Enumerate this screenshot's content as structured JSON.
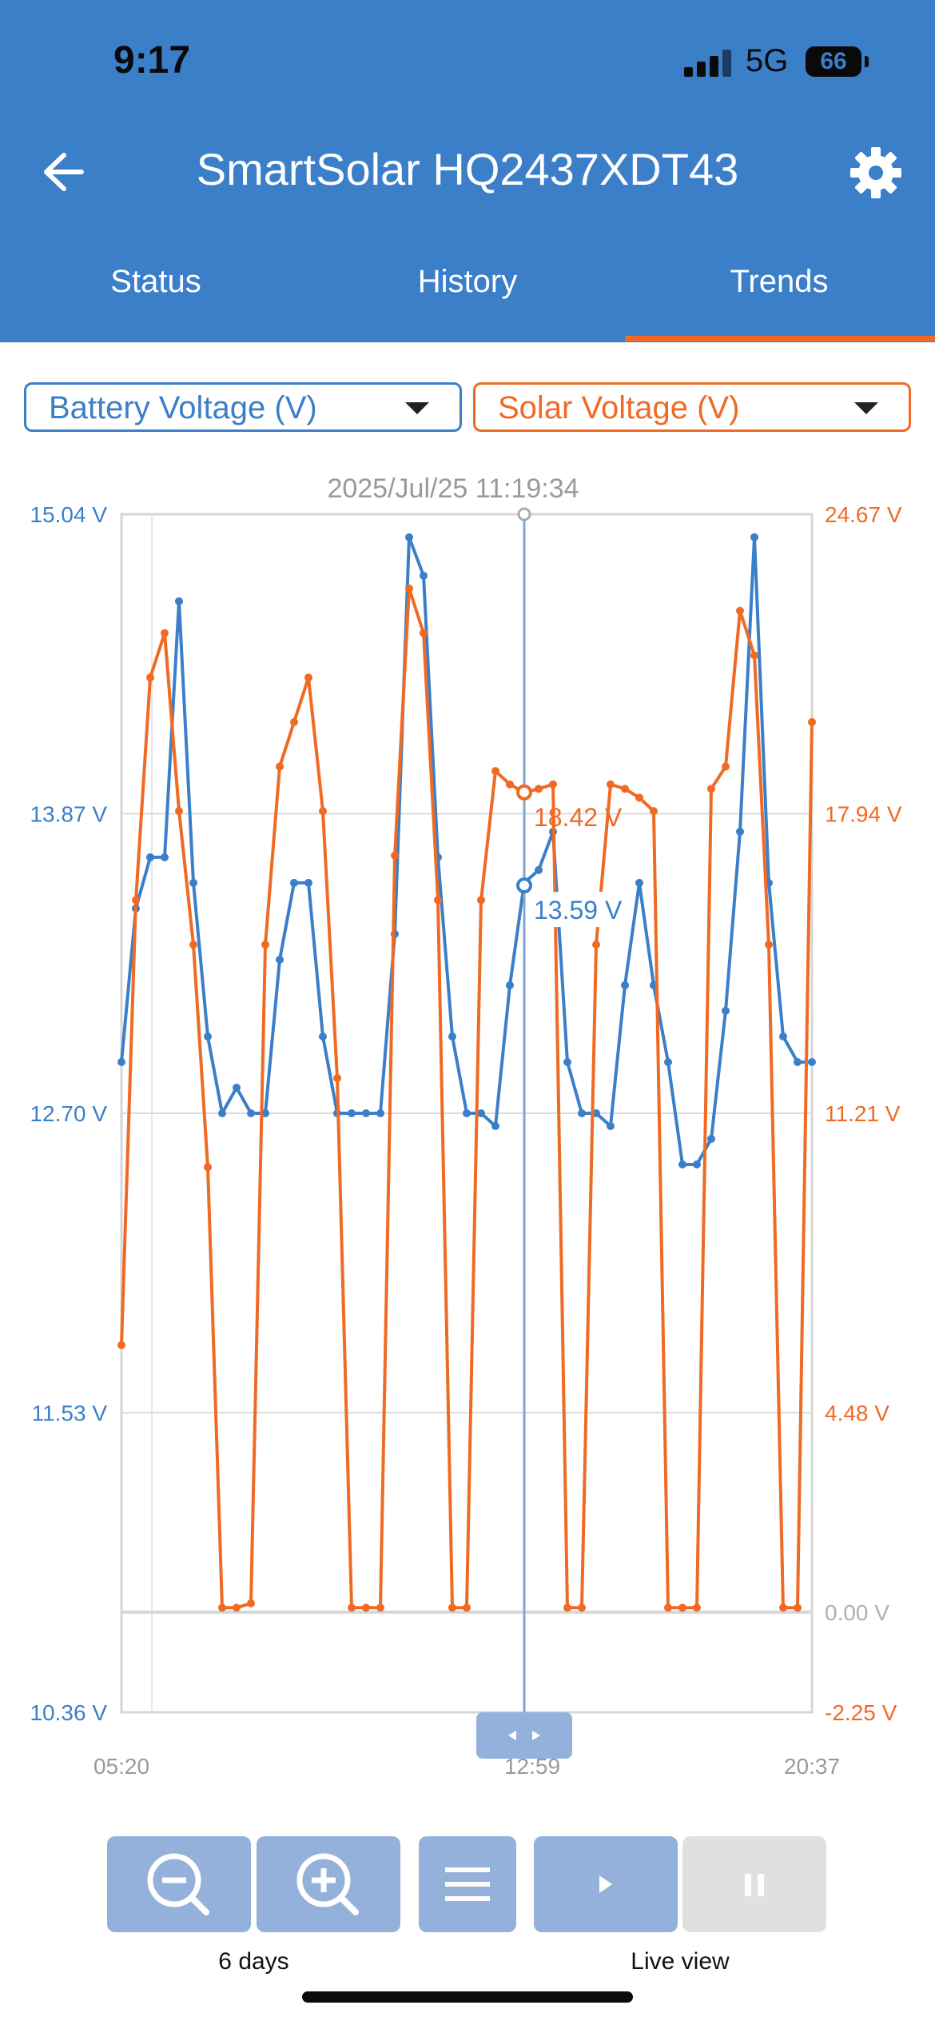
{
  "status_bar": {
    "time": "9:17",
    "network": "5G",
    "battery": "66"
  },
  "header": {
    "title": "SmartSolar HQ2437XDT43"
  },
  "tabs": [
    {
      "label": "Status"
    },
    {
      "label": "History"
    },
    {
      "label": "Trends",
      "active": true
    }
  ],
  "selectors": {
    "left": {
      "label": "Battery Voltage (V)",
      "color": "#3b7fc9"
    },
    "right": {
      "label": "Solar Voltage (V)",
      "color": "#f06a24"
    }
  },
  "chart_data": {
    "type": "line",
    "cursor_timestamp": "2025/Jul/25 11:19:34",
    "x_tick_labels": [
      "05:20",
      "12:59",
      "20:37"
    ],
    "left_axis": {
      "ticks": [
        "15.04 V",
        "13.87 V",
        "12.70 V",
        "11.53 V",
        "10.36 V"
      ],
      "ylim": [
        10.36,
        15.04
      ]
    },
    "right_axis": {
      "ticks": [
        "24.67 V",
        "17.94 V",
        "11.21 V",
        "4.48 V",
        "0.00 V",
        "-2.25 V"
      ],
      "ylim": [
        -2.25,
        24.67
      ]
    },
    "cursor_labels": {
      "solar": "18.42 V",
      "battery": "13.59 V"
    },
    "series": [
      {
        "name": "Battery Voltage (V)",
        "axis": "left",
        "color": "#3b7fc9",
        "x": [
          0,
          0.5,
          1,
          1.5,
          2,
          2.5,
          3,
          3.5,
          4,
          4.5,
          5,
          5.5,
          6,
          6.5,
          7,
          7.5,
          8,
          8.5,
          9,
          9.5,
          10,
          10.5,
          11,
          11.5,
          12,
          12.5,
          13,
          13.5,
          14,
          14.5,
          15,
          15.5,
          16,
          16.5,
          17,
          17.5,
          18,
          18.5,
          19,
          19.5,
          20,
          20.5,
          21,
          21.5,
          22,
          22.5,
          23,
          23.5,
          24
        ],
        "values": [
          12.9,
          13.5,
          13.7,
          13.7,
          14.7,
          13.6,
          13.0,
          12.7,
          12.8,
          12.7,
          12.7,
          13.3,
          13.6,
          13.6,
          13.0,
          12.7,
          12.7,
          12.7,
          12.7,
          13.4,
          14.95,
          14.8,
          13.7,
          13.0,
          12.7,
          12.7,
          12.65,
          13.2,
          13.6,
          13.65,
          13.8,
          12.9,
          12.7,
          12.7,
          12.65,
          13.2,
          13.6,
          13.2,
          12.9,
          12.5,
          12.5,
          12.6,
          13.1,
          13.8,
          14.95,
          13.6,
          13.0,
          12.9,
          12.9
        ]
      },
      {
        "name": "Solar Voltage (V)",
        "axis": "right",
        "color": "#f06a24",
        "x": [
          0,
          0.5,
          1,
          1.5,
          2,
          2.5,
          3,
          3.5,
          4,
          4.5,
          5,
          5.5,
          6,
          6.5,
          7,
          7.5,
          8,
          8.5,
          9,
          9.5,
          10,
          10.5,
          11,
          11.5,
          12,
          12.5,
          13,
          13.5,
          14,
          14.5,
          15,
          15.5,
          16,
          16.5,
          17,
          17.5,
          18,
          18.5,
          19,
          19.5,
          20,
          20.5,
          21,
          21.5,
          22,
          22.5,
          23,
          23.5,
          24
        ],
        "values": [
          6.0,
          16.0,
          21.0,
          22.0,
          18.0,
          15.0,
          10.0,
          0.1,
          0.1,
          0.2,
          15.0,
          19.0,
          20.0,
          21.0,
          18.0,
          12.0,
          0.1,
          0.1,
          0.1,
          17.0,
          23.0,
          22.0,
          16.0,
          0.1,
          0.1,
          16.0,
          18.9,
          18.6,
          18.42,
          18.5,
          18.6,
          0.1,
          0.1,
          15.0,
          18.6,
          18.5,
          18.3,
          18.0,
          0.1,
          0.1,
          0.1,
          18.5,
          19.0,
          22.5,
          21.5,
          15.0,
          0.1,
          0.1,
          20.0
        ]
      }
    ],
    "legend": "none",
    "grid": true
  },
  "footer": {
    "zoom_out_icon": "zoom-out-icon",
    "zoom_in_icon": "zoom-in-icon",
    "menu_icon": "menu-icon",
    "play_icon": "play-icon",
    "pause_icon": "pause-icon",
    "zoom_caption": "6 days",
    "live_caption": "Live view"
  }
}
